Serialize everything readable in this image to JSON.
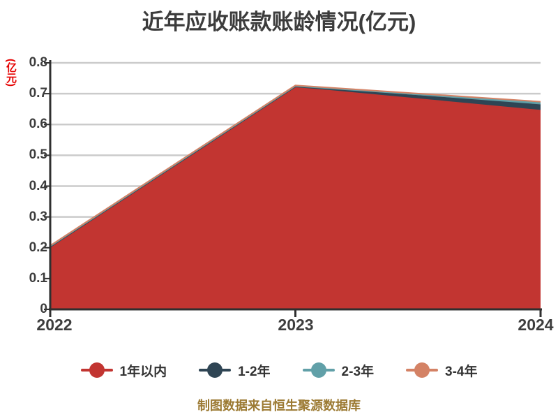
{
  "title": "近年应收账款账龄情况(亿元)",
  "y_axis": {
    "unit_label": "(亿元)",
    "unit_color": "#e60000",
    "ticks": [
      "0",
      "0.1",
      "0.2",
      "0.3",
      "0.4",
      "0.5",
      "0.6",
      "0.7",
      "0.8"
    ]
  },
  "chart_data": {
    "type": "area",
    "stacked": true,
    "title": "近年应收账款账龄情况(亿元)",
    "categories": [
      "2022",
      "2023",
      "2024"
    ],
    "series": [
      {
        "name": "1年以内",
        "color": "#c23531",
        "values": [
          0.2,
          0.72,
          0.645
        ]
      },
      {
        "name": "1-2年",
        "color": "#2f4554",
        "values": [
          0.003,
          0.003,
          0.018
        ]
      },
      {
        "name": "2-3年",
        "color": "#61a0a8",
        "values": [
          0.002,
          0.002,
          0.007
        ]
      },
      {
        "name": "3-4年",
        "color": "#d48265",
        "values": [
          0.002,
          0.002,
          0.004
        ]
      }
    ],
    "ylim": [
      0,
      0.8
    ],
    "ytick_step": 0.1,
    "grid": "horizontal-only",
    "gridline_color": "#cbcbcb",
    "axis_color": "#2f2f2f",
    "legend_position": "bottom"
  },
  "footer": {
    "source_text": "制图数据来自恒生聚源数据库",
    "color": "#9c7a33"
  }
}
